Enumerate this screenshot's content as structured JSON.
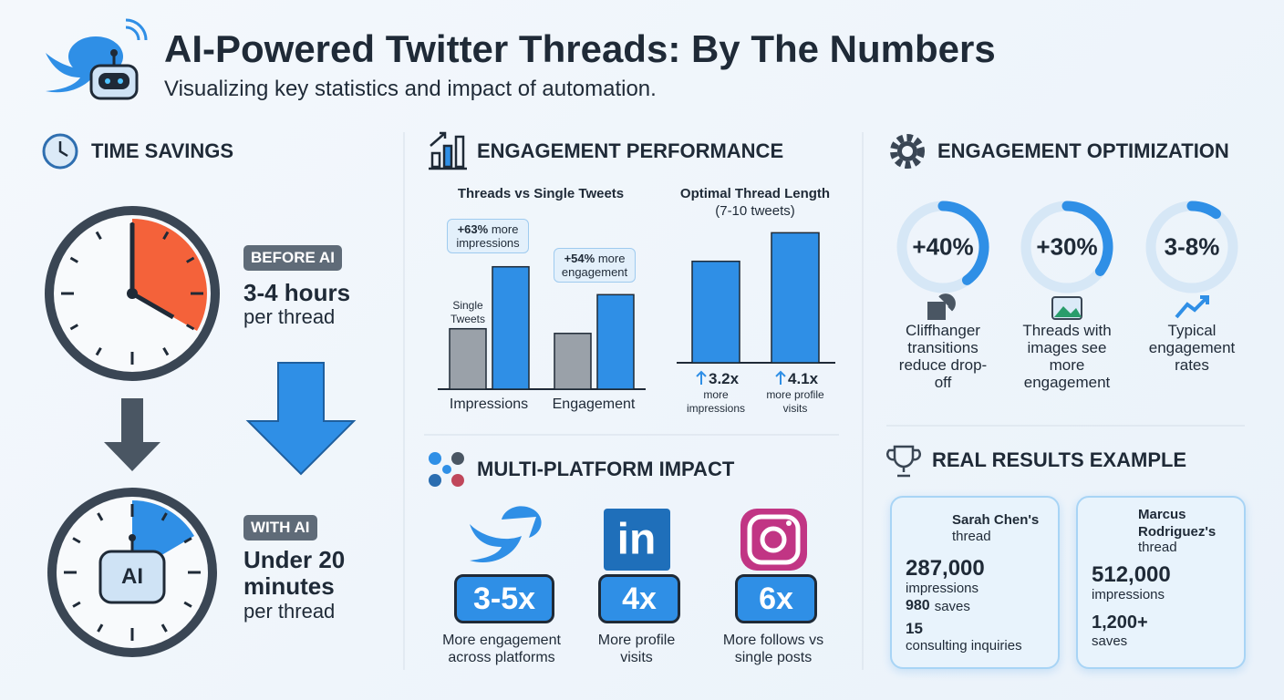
{
  "header": {
    "title": "AI-Powered Twitter Threads: By The Numbers",
    "subtitle": "Visualizing key statistics and impact of automation."
  },
  "time_savings": {
    "title": "TIME SAVINGS",
    "clock_label": "AI",
    "before": {
      "badge": "BEFORE AI",
      "value": "3-4 hours",
      "unit": "per thread"
    },
    "after": {
      "badge": "WITH AI",
      "value": "Under 20 minutes",
      "unit": "per thread"
    }
  },
  "engagement_performance": {
    "title": "ENGAGEMENT PERFORMANCE",
    "threads_vs_single": {
      "type": "bar",
      "title": "Threads vs Single Tweets",
      "categories": [
        "Impressions",
        "Engagement"
      ],
      "ylim": [
        0,
        100
      ],
      "series": [
        {
          "name": "Single Tweets",
          "color": "#9aa1a9",
          "values": [
            39,
            36
          ]
        },
        {
          "color": "#2f8fe6",
          "values": [
            79,
            61
          ]
        }
      ],
      "callouts": [
        {
          "value": "+63%",
          "text": "more impressions"
        },
        {
          "value": "+54%",
          "text": "more engagement"
        }
      ]
    },
    "optimal_length": {
      "type": "bar",
      "title": "Optimal Thread Length",
      "subtitle": "(7-10 tweets)",
      "color": "#2f8fe6",
      "ylim": [
        0,
        4.6
      ],
      "values": [
        3.2,
        4.1
      ],
      "value_labels": [
        "3.2x",
        "4.1x"
      ],
      "captions": [
        "more impressions",
        "more profile visits"
      ]
    }
  },
  "multi_platform": {
    "title": "MULTI-PLATFORM IMPACT",
    "linkedin_logo": "in",
    "items": [
      {
        "value": "3-5x",
        "text": "More engagement across platforms"
      },
      {
        "value": "4x",
        "text": "More profile visits"
      },
      {
        "value": "6x",
        "text": "More follows vs single posts"
      }
    ]
  },
  "engagement_optimization": {
    "title": "ENGAGEMENT OPTIMIZATION",
    "items": [
      {
        "value": "+40%",
        "progress": 40,
        "text": "Cliffhanger transitions reduce drop-off"
      },
      {
        "value": "+30%",
        "progress": 35,
        "text": "Threads with images see more engagement"
      },
      {
        "value": "3-8%",
        "progress": 10,
        "text": "Typical engagement rates"
      }
    ]
  },
  "real_results": {
    "title": "REAL RESULTS EXAMPLE",
    "cards": [
      {
        "name": "Sarah Chen's",
        "suffix": "thread",
        "stats": [
          {
            "value": "287,000",
            "label": "impressions"
          },
          {
            "value": "980",
            "label": "saves"
          },
          {
            "value": "15",
            "label": "consulting inquiries"
          }
        ]
      },
      {
        "name": "Marcus Rodriguez's",
        "suffix": "thread",
        "stats": [
          {
            "value": "512,000",
            "label": "impressions"
          },
          {
            "value": "1,200+",
            "label": "saves"
          }
        ]
      }
    ]
  }
}
